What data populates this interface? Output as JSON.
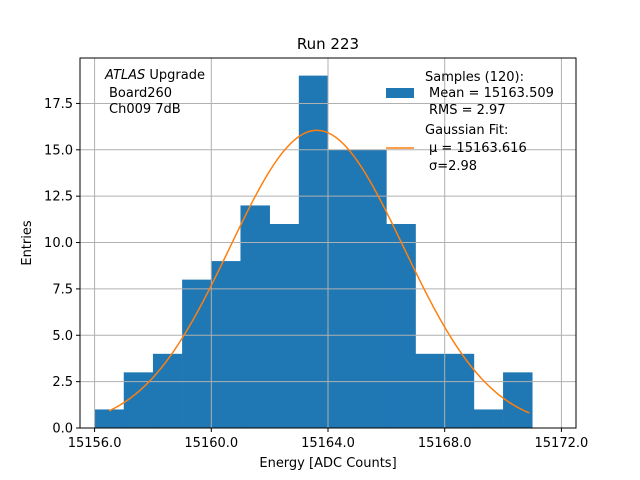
{
  "chart_data": {
    "type": "bar",
    "title": "Run 223",
    "xlabel": "Energy [ADC Counts]",
    "ylabel": "Entries",
    "xlim": [
      15155.5,
      15172.5
    ],
    "ylim": [
      0,
      19.95
    ],
    "grid": true,
    "bar_color": "#1f77b4",
    "fit_color": "#ff7f0e",
    "xticks": [
      15156.0,
      15160.0,
      15164.0,
      15168.0,
      15172.0
    ],
    "xtick_labels": [
      "15156.0",
      "15160.0",
      "15164.0",
      "15168.0",
      "15172.0"
    ],
    "yticks": [
      0.0,
      2.5,
      5.0,
      7.5,
      10.0,
      12.5,
      15.0,
      17.5
    ],
    "ytick_labels": [
      "0.0",
      "2.5",
      "5.0",
      "7.5",
      "10.0",
      "12.5",
      "15.0",
      "17.5"
    ],
    "bin_edges": [
      15156.0,
      15157.0,
      15158.0,
      15159.0,
      15160.0,
      15161.0,
      15162.0,
      15163.0,
      15164.0,
      15165.0,
      15166.0,
      15167.0,
      15168.0,
      15169.0,
      15170.0,
      15171.0
    ],
    "counts": [
      1,
      3,
      4,
      8,
      9,
      12,
      11,
      19,
      15,
      15,
      11,
      4,
      4,
      1,
      3
    ],
    "fit": {
      "mu": 15163.616,
      "sigma": 2.98,
      "amplitude": 16.05,
      "x_range": [
        15156.5,
        15170.9
      ]
    },
    "annotation": {
      "lines": [
        "ATLAS Upgrade",
        "Board260",
        "Ch009 7dB"
      ]
    },
    "legend": {
      "position": "top-right",
      "samples": [
        "Samples (120):",
        "Mean = 15163.509",
        "RMS = 2.97"
      ],
      "fit": [
        "Gaussian Fit:",
        "μ = 15163.616",
        "σ=2.98"
      ]
    }
  }
}
